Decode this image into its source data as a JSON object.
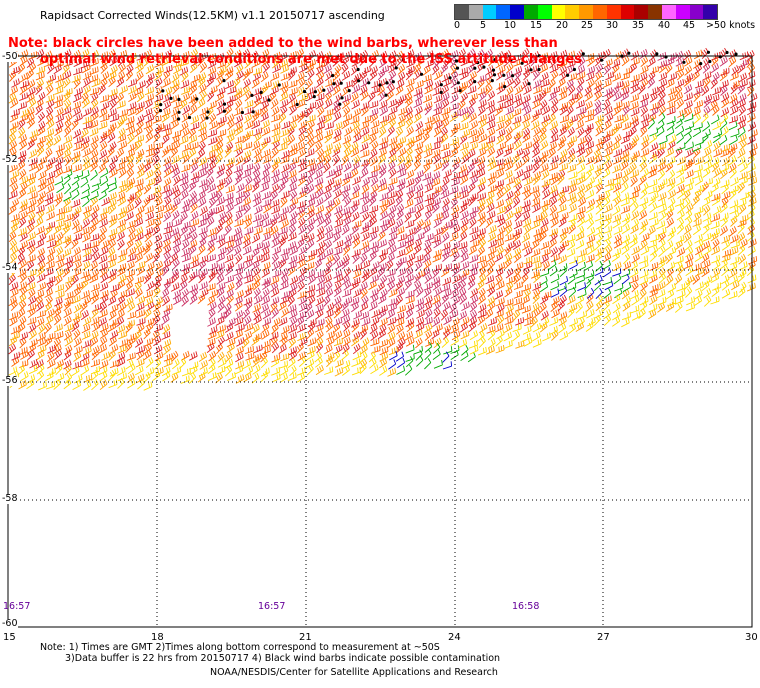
{
  "title": "Rapidsact Corrected Winds(12.5KM) v1.1 20150717 ascending",
  "note": {
    "line1": "Note: black circles have been added to the wind barbs, wherever less than",
    "line2": "optimal wind retrieval conditions are met due to the ISS attitude changes"
  },
  "legend": {
    "labels": [
      "0",
      "5",
      "10",
      "15",
      "20",
      "25",
      "30",
      "35",
      "40",
      "45",
      ">50 knots"
    ],
    "colors": [
      "#555555",
      "#aaaaaa",
      "#00ccff",
      "#0066ff",
      "#0000cc",
      "#00aa00",
      "#00ff00",
      "#ffff00",
      "#ffcc00",
      "#ff9900",
      "#ff6600",
      "#ff3300",
      "#dd0000",
      "#aa0000",
      "#883300",
      "#ff66ff",
      "#cc00ff",
      "#8800cc",
      "#3300aa"
    ]
  },
  "map": {
    "lat_labels": [
      "-50",
      "-52",
      "-54",
      "-56",
      "-58",
      "-60"
    ],
    "lon_labels": [
      "15",
      "18",
      "21",
      "24",
      "27",
      "30"
    ],
    "time_labels": [
      "16:57",
      "16:57",
      "16:58"
    ]
  },
  "footer": {
    "line1": "Note: 1) Times are GMT 2)Times along bottom correspond to measurement at ~50S",
    "line2": "3)Data buffer is 22 hrs from 20150717 4) Black wind barbs indicate possible contamination",
    "line3": "NOAA/NESDIS/Center for Satellite Applications and Research"
  },
  "wind_colors": {
    "low": "#00aa00",
    "light": "#0000cc",
    "moderate": "#ffdd00",
    "fresh": "#ffaa00",
    "strong": "#ff6600",
    "gale": "#dd2222",
    "storm": "#cc3366",
    "flagged": "#000000"
  }
}
